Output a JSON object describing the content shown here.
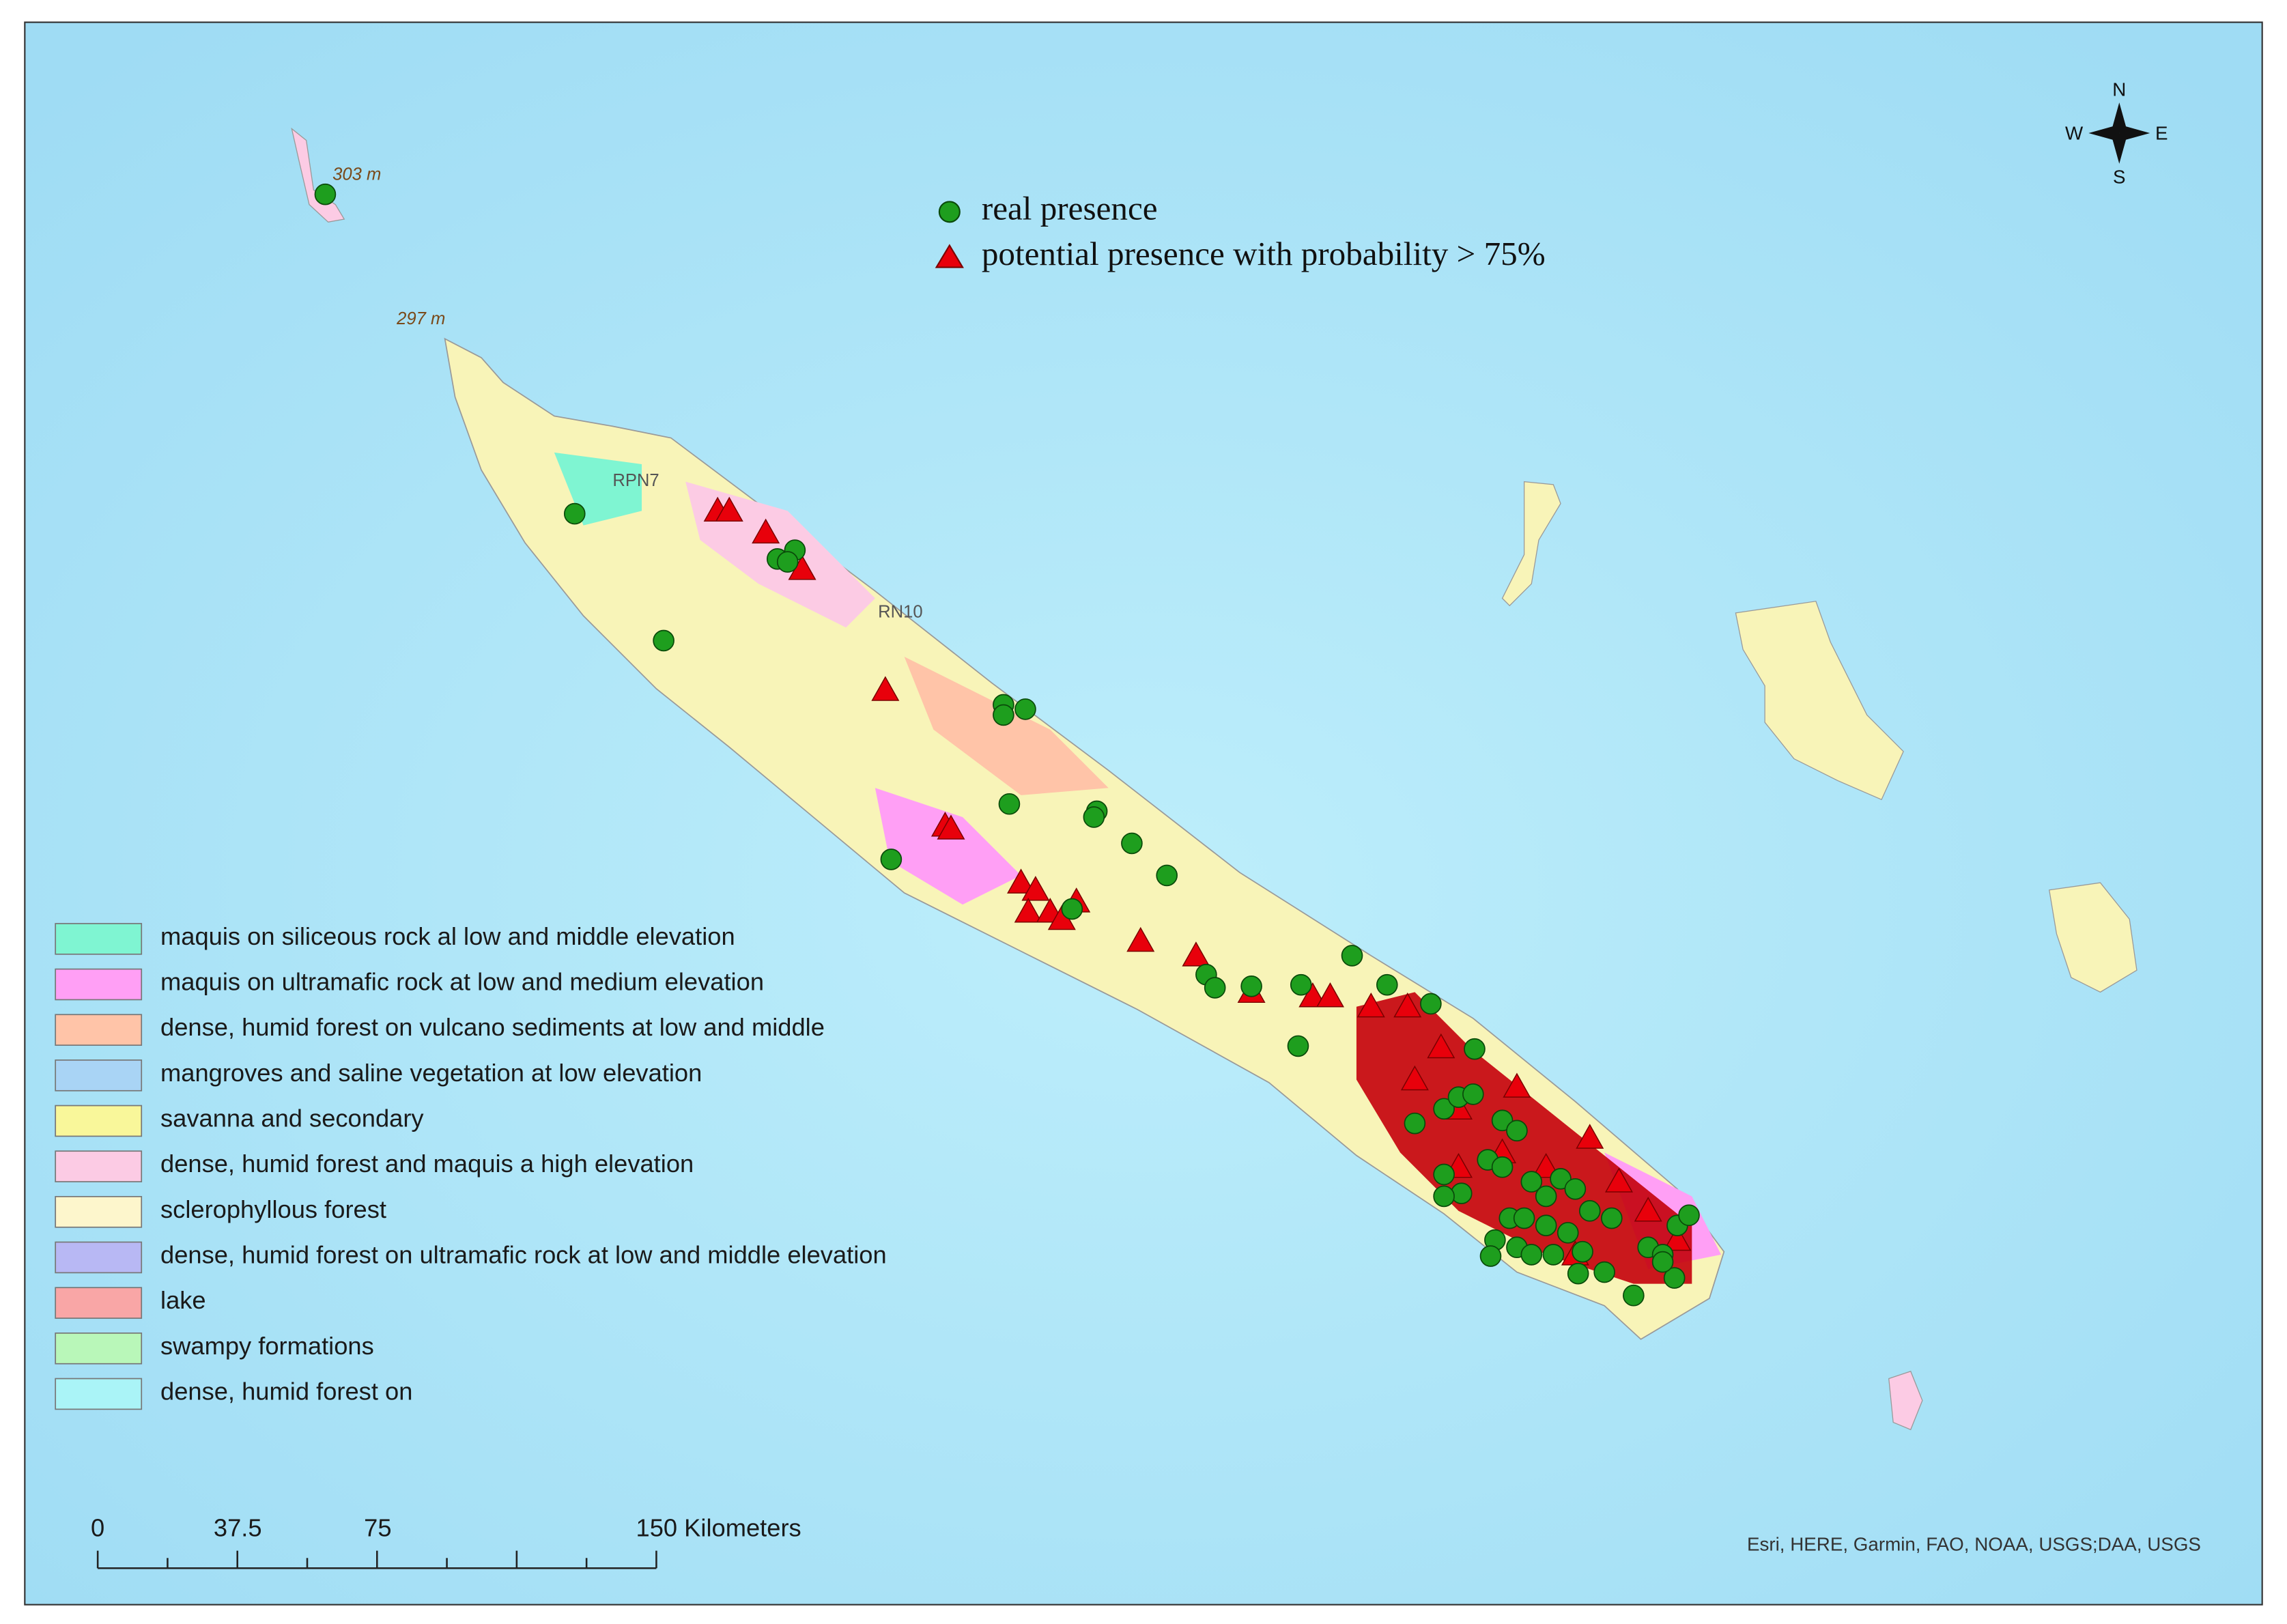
{
  "map": {
    "labels": {
      "elev_north": "303 m",
      "elev_mid": "297 m",
      "road_1": "RPN7",
      "road_2": "RN10"
    },
    "points_legend": [
      {
        "label": "real presence",
        "color": "#1e9e1e"
      },
      {
        "label": "potential presence with probability > 75%",
        "color": "#e8000b"
      }
    ],
    "legend": [
      {
        "label": "maquis on siliceous rock al low and middle elevation",
        "color": "#7ff5d2"
      },
      {
        "label": "maquis on ultramafic rock at low and medium elevation",
        "color": "#ff9ff5"
      },
      {
        "label": "dense, humid forest on vulcano sediments at low and middle",
        "color": "#ffc4a8"
      },
      {
        "label": "mangroves and saline vegetation at low elevation",
        "color": "#a9d4f5"
      },
      {
        "label": "savanna and secondary",
        "color": "#f9f79a"
      },
      {
        "label": "dense, humid forest and maquis a high elevation",
        "color": "#fccbe4"
      },
      {
        "label": "sclerophyllous forest",
        "color": "#fdf6cc"
      },
      {
        "label": "dense, humid forest on ultramafic rock at low and middle elevation",
        "color": "#b8b8f4"
      },
      {
        "label": "lake",
        "color": "#f9a6a6"
      },
      {
        "label": "swampy formations",
        "color": "#b9f7b9"
      },
      {
        "label": "dense, humid forest on",
        "color": "#aaf4f7"
      }
    ],
    "compass": {
      "n": "N",
      "e": "E",
      "s": "S",
      "w": "W"
    },
    "scale_bar": {
      "labels": [
        "0",
        "37.5",
        "75",
        "150 Kilometers"
      ]
    },
    "attribution": "Esri, HERE, Garmin, FAO, NOAA, USGS;DAA, USGS"
  }
}
